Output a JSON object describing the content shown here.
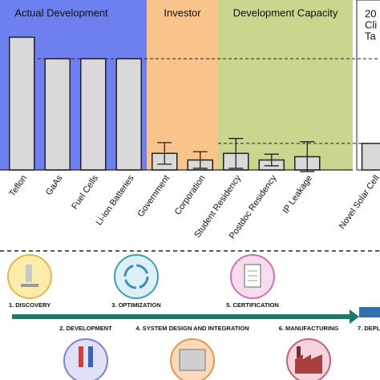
{
  "chart_data": {
    "type": "bar",
    "ylim": [
      0,
      100
    ],
    "panels": [
      {
        "label": [
          "Actual Development"
        ],
        "color": "#6e7ff0",
        "categories": [
          "Teflon",
          "GaAs",
          "Fuel Cells",
          "Li-ion Batteries"
        ],
        "values": [
          80,
          67,
          67,
          67
        ]
      },
      {
        "label": [
          "Investor"
        ],
        "color": "#f9c48c",
        "categories": [
          "Government",
          "Corporation"
        ],
        "values": [
          10,
          6
        ],
        "errors": [
          6.5,
          5
        ]
      },
      {
        "label": [
          "Development Capacity"
        ],
        "color": "#cbd58e",
        "categories": [
          "Student Residency",
          "Postdoc Residency",
          "IP Leakage"
        ],
        "values": [
          10,
          6,
          8
        ],
        "errors": [
          9,
          3.5,
          9
        ]
      },
      {
        "label": [
          "20",
          "Cli",
          "Ta"
        ],
        "color": "#ffffff",
        "categories": [
          "Novel Solar Cell"
        ],
        "values": [
          16
        ]
      }
    ]
  },
  "process": {
    "steps": [
      {
        "label": "1. DISCOVERY"
      },
      {
        "label": "2. DEVELOPMENT"
      },
      {
        "label": "3. OPTIMIZATION"
      },
      {
        "label": "4. SYSTEM DESIGN AND INTEGRATION"
      },
      {
        "label": "5. CERTIFICATION"
      },
      {
        "label": "6. MANUFACTURING"
      },
      {
        "label": "7. DEPL"
      }
    ]
  }
}
